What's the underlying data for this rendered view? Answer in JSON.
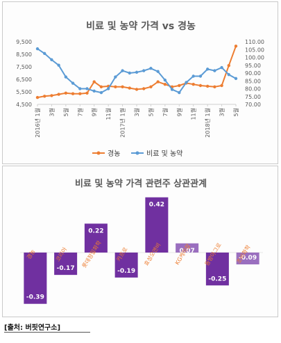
{
  "chart_data": [
    {
      "type": "line",
      "title": "비료 및 농약 가격 vs 경농",
      "x": [
        "2016년 1월",
        "2월",
        "3월",
        "4월",
        "5월",
        "6월",
        "7월",
        "8월",
        "9월",
        "10월",
        "11월",
        "12월",
        "2017년 1월",
        "2월",
        "3월",
        "4월",
        "5월",
        "6월",
        "7월",
        "8월",
        "9월",
        "10월",
        "11월",
        "12월",
        "2018년 1월",
        "2월",
        "3월",
        "4월",
        "5월"
      ],
      "x_tick_labels": [
        "2016년 1월",
        "3월",
        "5월",
        "7월",
        "9월",
        "11월",
        "2017년 1월",
        "3월",
        "5월",
        "7월",
        "9월",
        "11월",
        "2018년 1월",
        "3월",
        "5월"
      ],
      "series": [
        {
          "name": "경농",
          "axis": "left",
          "color": "#ed7d31",
          "values": [
            5050,
            5150,
            5200,
            5300,
            5400,
            5350,
            5350,
            5400,
            6300,
            5900,
            5950,
            5900,
            5900,
            5800,
            5700,
            5750,
            5900,
            6300,
            6100,
            5900,
            6000,
            6200,
            6100,
            6000,
            5950,
            5900,
            6000,
            7600,
            9150
          ]
        },
        {
          "name": "비료 및 농약",
          "axis": "right",
          "color": "#5b9bd5",
          "values": [
            105.5,
            102.5,
            98.5,
            95.0,
            87.5,
            83.5,
            80.0,
            80.0,
            78.5,
            77.5,
            80.0,
            87.5,
            91.5,
            90.0,
            90.5,
            91.5,
            93.0,
            91.0,
            85.5,
            79.5,
            77.5,
            84.0,
            88.0,
            88.0,
            92.5,
            91.5,
            93.5,
            89.0,
            86.5
          ]
        }
      ],
      "y_left": {
        "ticks": [
          "4,500",
          "5,500",
          "6,500",
          "7,500",
          "8,500",
          "9,500"
        ],
        "min": 4500,
        "max": 9500
      },
      "y_right": {
        "ticks": [
          "70.00",
          "75.00",
          "80.00",
          "85.00",
          "90.00",
          "95.00",
          "100.00",
          "105.00",
          "110.00"
        ],
        "min": 70,
        "max": 110
      },
      "legend_position": "bottom"
    },
    {
      "type": "bar",
      "title": "비료 및 농약 가격 관련주 상관관계",
      "categories": [
        "경농",
        "코리아",
        "롯데정밀화학",
        "카프로",
        "효성오앤비",
        "KG케미칼",
        "동방아그로",
        "조비화학"
      ],
      "values": [
        -0.39,
        -0.17,
        0.22,
        -0.19,
        0.42,
        0.07,
        -0.25,
        -0.09
      ],
      "value_labels": [
        "-0.39",
        "-0.17",
        "0.22",
        "-0.19",
        "0.42",
        "0.07",
        "-0.25",
        "-0.09"
      ],
      "ylim": [
        -0.5,
        0.5
      ],
      "color": "#7030a0",
      "color_light": "#9a6fbf"
    }
  ],
  "source": "[출처: 버핏연구소]"
}
